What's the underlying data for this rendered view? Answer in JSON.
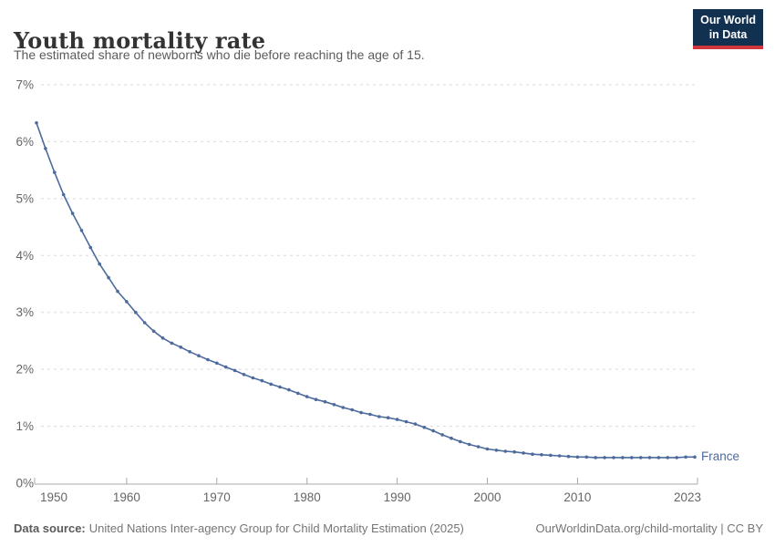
{
  "header": {
    "title": "Youth mortality rate",
    "subtitle": "The estimated share of newborns who die before reaching the age of 15.",
    "logo": {
      "line1": "Our World",
      "line2": "in Data"
    }
  },
  "chart_data": {
    "type": "line",
    "title": "Youth mortality rate",
    "ylabel": "",
    "xlabel": "",
    "xlim": [
      1950,
      2023
    ],
    "ylim": [
      0,
      7
    ],
    "grid": "horizontal-dashed",
    "y_ticks": [
      "0%",
      "1%",
      "2%",
      "3%",
      "4%",
      "5%",
      "6%",
      "7%"
    ],
    "x_ticks": [
      1950,
      1960,
      1970,
      1980,
      1990,
      2000,
      2010,
      2023
    ],
    "series": [
      {
        "name": "France",
        "color": "#4C6A9C",
        "years": [
          1950,
          1951,
          1952,
          1953,
          1954,
          1955,
          1956,
          1957,
          1958,
          1959,
          1960,
          1961,
          1962,
          1963,
          1964,
          1965,
          1966,
          1967,
          1968,
          1969,
          1970,
          1971,
          1972,
          1973,
          1974,
          1975,
          1976,
          1977,
          1978,
          1979,
          1980,
          1981,
          1982,
          1983,
          1984,
          1985,
          1986,
          1987,
          1988,
          1989,
          1990,
          1991,
          1992,
          1993,
          1994,
          1995,
          1996,
          1997,
          1998,
          1999,
          2000,
          2001,
          2002,
          2003,
          2004,
          2005,
          2006,
          2007,
          2008,
          2009,
          2010,
          2011,
          2012,
          2013,
          2014,
          2015,
          2016,
          2017,
          2018,
          2019,
          2020,
          2021,
          2022,
          2023
        ],
        "values": [
          6.33,
          5.88,
          5.46,
          5.07,
          4.74,
          4.44,
          4.14,
          3.85,
          3.61,
          3.37,
          3.19,
          3.0,
          2.82,
          2.67,
          2.55,
          2.46,
          2.39,
          2.31,
          2.24,
          2.17,
          2.11,
          2.04,
          1.98,
          1.91,
          1.85,
          1.8,
          1.74,
          1.69,
          1.64,
          1.58,
          1.52,
          1.47,
          1.43,
          1.38,
          1.33,
          1.29,
          1.24,
          1.21,
          1.17,
          1.15,
          1.12,
          1.08,
          1.04,
          0.98,
          0.92,
          0.85,
          0.79,
          0.73,
          0.68,
          0.64,
          0.6,
          0.58,
          0.56,
          0.55,
          0.53,
          0.51,
          0.5,
          0.49,
          0.48,
          0.47,
          0.46,
          0.46,
          0.45,
          0.45,
          0.45,
          0.45,
          0.45,
          0.45,
          0.45,
          0.45,
          0.45,
          0.45,
          0.46,
          0.46
        ]
      }
    ],
    "end_label": "France"
  },
  "footer": {
    "source_label": "Data source:",
    "source_text": "United Nations Inter-agency Group for Child Mortality Estimation (2025)",
    "link_text": "OurWorldinData.org/child-mortality | CC BY"
  },
  "colors": {
    "series_line": "#4C6A9C",
    "gridline": "#dadada",
    "axis_line": "#a8a8a8",
    "tick_text": "#666666",
    "logo_bg": "#12304F",
    "logo_accent": "#D0363C"
  }
}
